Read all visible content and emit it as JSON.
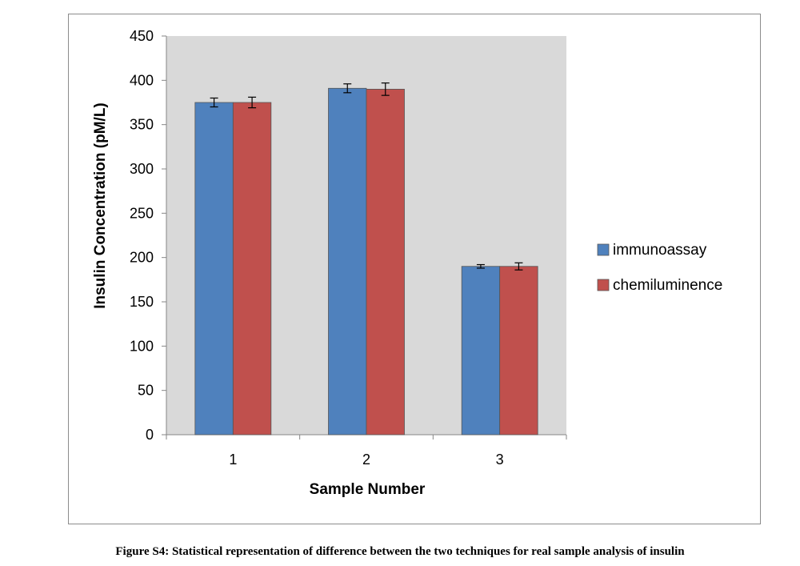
{
  "caption": "Figure S4: Statistical representation of difference between the two techniques for real sample analysis of insulin",
  "chart_data": {
    "type": "bar",
    "title": "",
    "xlabel": "Sample Number",
    "ylabel": "Insulin Concentration (pM/L)",
    "categories": [
      "1",
      "2",
      "3"
    ],
    "ylim": [
      0,
      450
    ],
    "yticks": [
      0,
      50,
      100,
      150,
      200,
      250,
      300,
      350,
      400,
      450
    ],
    "grid": false,
    "legend_position": "right",
    "plot_background": "#d9d9d9",
    "series": [
      {
        "name": "immunoassay",
        "color": "#4f81bd",
        "values": [
          375,
          391,
          190
        ],
        "errors": [
          5,
          5,
          2
        ]
      },
      {
        "name": "chemiluminence",
        "color": "#c0504d",
        "values": [
          375,
          390,
          190
        ],
        "errors": [
          6,
          7,
          4
        ]
      }
    ]
  }
}
